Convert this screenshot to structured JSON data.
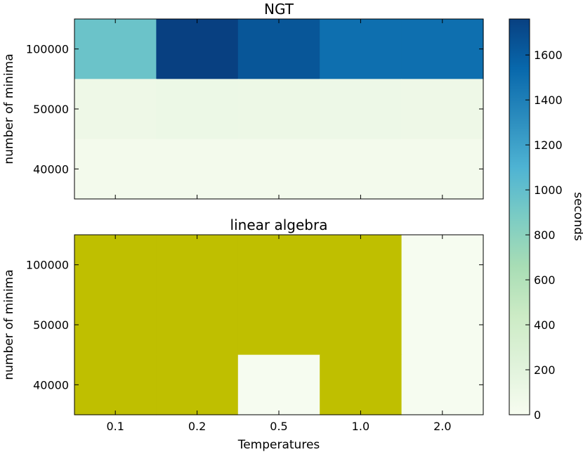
{
  "chart_data": [
    {
      "type": "heatmap",
      "title": "NGT",
      "xlabel": "",
      "ylabel": "number of minima",
      "x_categories": [
        "0.1",
        "0.2",
        "0.5",
        "1.0",
        "2.0"
      ],
      "y_categories": [
        "100000",
        "50000",
        "40000"
      ],
      "values": [
        [
          960,
          1760,
          1640,
          1500,
          1500
        ],
        [
          90,
          110,
          100,
          95,
          90
        ],
        [
          40,
          40,
          40,
          40,
          40
        ]
      ],
      "missing_color": "#bfbf00"
    },
    {
      "type": "heatmap",
      "title": "linear algebra",
      "xlabel": "Temperatures",
      "ylabel": "number of minima",
      "x_categories": [
        "0.1",
        "0.2",
        "0.5",
        "1.0",
        "2.0"
      ],
      "y_categories": [
        "100000",
        "50000",
        "40000"
      ],
      "values": [
        [
          null,
          null,
          null,
          null,
          5
        ],
        [
          null,
          null,
          null,
          null,
          5
        ],
        [
          null,
          null,
          5,
          null,
          5
        ]
      ],
      "missing_color": "#bfbf00"
    }
  ],
  "colorbar": {
    "label": "seconds",
    "min": 0,
    "max": 1760,
    "ticks": [
      "0",
      "200",
      "400",
      "600",
      "800",
      "1000",
      "1200",
      "1400",
      "1600"
    ],
    "colormap": "GnBu",
    "stops": [
      "#f7fcf0",
      "#e0f3db",
      "#ccebc5",
      "#a8ddb5",
      "#7bccc4",
      "#4eb3d3",
      "#2b8cbe",
      "#0868ac",
      "#084081"
    ]
  }
}
